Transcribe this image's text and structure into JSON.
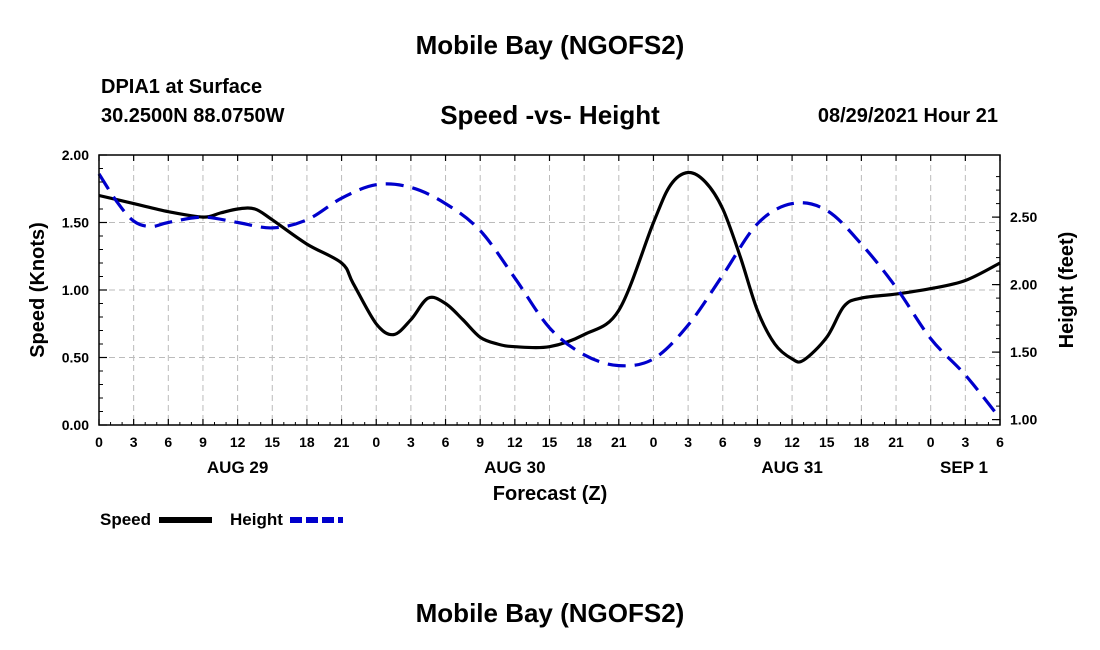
{
  "header": {
    "top_title": "Mobile Bay (NGOFS2)",
    "station": "DPIA1 at Surface",
    "coords": "30.2500N  88.0750W",
    "chart_title": "Speed -vs- Height",
    "timestamp": "08/29/2021 Hour 21"
  },
  "footer": {
    "bottom_title": "Mobile Bay (NGOFS2)"
  },
  "chart_data": {
    "type": "line",
    "title": "Speed -vs- Height",
    "xlabel": "Forecast (Z)",
    "ylabel": "Speed (Knots)",
    "y2label": "Height (feet)",
    "grid": true,
    "legend_position": "bottom-left",
    "x_range_hours": [
      0,
      78
    ],
    "x_tick_labels": [
      "0",
      "3",
      "6",
      "9",
      "12",
      "15",
      "18",
      "21",
      "0",
      "3",
      "6",
      "9",
      "12",
      "15",
      "18",
      "21",
      "0",
      "3",
      "6",
      "9",
      "12",
      "15",
      "18",
      "21",
      "0",
      "3",
      "6"
    ],
    "day_labels": [
      {
        "label": "AUG 29",
        "hour": 12
      },
      {
        "label": "AUG 30",
        "hour": 36
      },
      {
        "label": "AUG 31",
        "hour": 60
      },
      {
        "label": "SEP 1",
        "hour": 78
      }
    ],
    "ylim": [
      0,
      2
    ],
    "y_ticks": [
      "0.00",
      "0.50",
      "1.00",
      "1.50",
      "2.00"
    ],
    "y2lim": [
      0.96,
      2.96
    ],
    "y2_ticks": [
      "1.00",
      "1.50",
      "2.00",
      "2.50"
    ],
    "series": [
      {
        "name": "Speed",
        "color": "#000000",
        "dash": "solid",
        "axis": "left",
        "x": [
          0,
          3,
          6,
          9,
          10.5,
          12,
          13.5,
          15,
          18,
          21,
          22,
          24,
          25.5,
          27,
          28.5,
          30,
          31.5,
          33,
          34.5,
          36,
          39,
          42,
          45,
          48,
          49.5,
          51,
          52.5,
          54,
          55.5,
          57,
          58.5,
          60,
          61,
          63,
          64.5,
          66,
          69,
          72,
          75,
          78
        ],
        "values": [
          1.7,
          1.64,
          1.58,
          1.54,
          1.57,
          1.6,
          1.6,
          1.52,
          1.34,
          1.2,
          1.05,
          0.75,
          0.67,
          0.78,
          0.94,
          0.9,
          0.78,
          0.65,
          0.6,
          0.58,
          0.58,
          0.67,
          0.85,
          1.5,
          1.78,
          1.87,
          1.8,
          1.6,
          1.25,
          0.85,
          0.6,
          0.49,
          0.48,
          0.65,
          0.88,
          0.94,
          0.97,
          1.01,
          1.07,
          1.2
        ]
      },
      {
        "name": "Height",
        "color": "#0000cc",
        "dash": "dashed",
        "axis": "right",
        "x": [
          0,
          1.5,
          3,
          4.5,
          6,
          9,
          12,
          15,
          18,
          21,
          24,
          27,
          30,
          33,
          36,
          39,
          42,
          45,
          48,
          51,
          54,
          57,
          60,
          63,
          66,
          69,
          72,
          75,
          78
        ],
        "values": [
          2.82,
          2.62,
          2.47,
          2.43,
          2.46,
          2.5,
          2.46,
          2.42,
          2.48,
          2.64,
          2.74,
          2.72,
          2.6,
          2.4,
          2.05,
          1.68,
          1.48,
          1.4,
          1.45,
          1.7,
          2.07,
          2.45,
          2.6,
          2.55,
          2.3,
          1.98,
          1.6,
          1.33,
          1.01
        ]
      }
    ]
  }
}
